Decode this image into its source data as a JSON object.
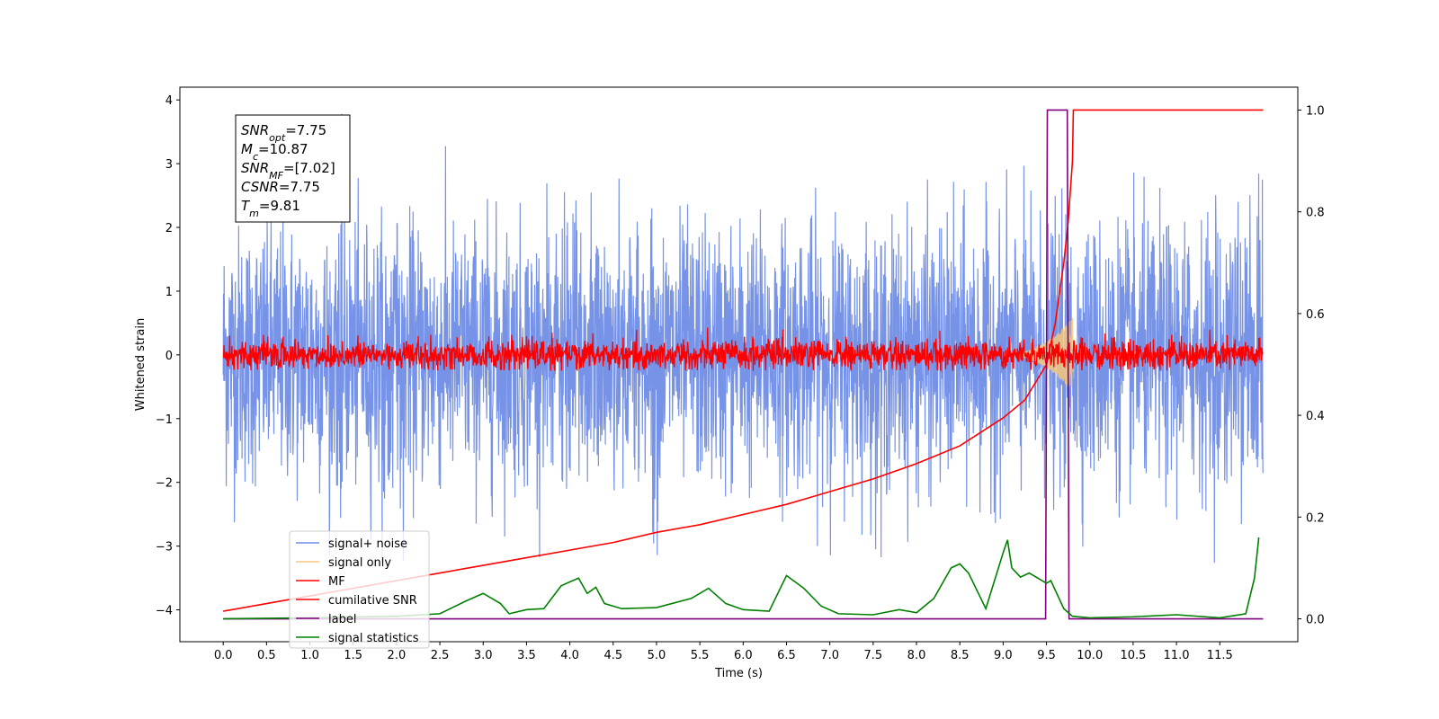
{
  "chart_data": {
    "type": "line",
    "xlabel": "Time (s)",
    "ylabel": "Whitened strain",
    "xlim": [
      -0.5,
      12.4
    ],
    "ylim": [
      -4.5,
      4.2
    ],
    "y2lim": [
      -0.045,
      1.045
    ],
    "x_ticks": [
      0.0,
      0.5,
      1.0,
      1.5,
      2.0,
      2.5,
      3.0,
      3.5,
      4.0,
      4.5,
      5.0,
      5.5,
      6.0,
      6.5,
      7.0,
      7.5,
      8.0,
      8.5,
      9.0,
      9.5,
      10.0,
      10.5,
      11.0,
      11.5
    ],
    "x_tick_labels": [
      "0.0",
      "0.5",
      "1.0",
      "1.5",
      "2.0",
      "2.5",
      "3.0",
      "3.5",
      "4.0",
      "4.5",
      "5.0",
      "5.5",
      "6.0",
      "6.5",
      "7.0",
      "7.5",
      "8.0",
      "8.5",
      "9.0",
      "9.5",
      "10.0",
      "10.5",
      "11.0",
      "11.5"
    ],
    "y_ticks": [
      4,
      3,
      2,
      1,
      0,
      -1,
      -2,
      -3,
      -4
    ],
    "y_tick_labels": [
      "4",
      "3",
      "2",
      "1",
      "0",
      "−1",
      "−2",
      "−3",
      "−4"
    ],
    "y2_ticks": [
      1.0,
      0.8,
      0.6,
      0.4,
      0.2,
      0.0
    ],
    "y2_tick_labels": [
      "1.0",
      "0.8",
      "0.6",
      "0.4",
      "0.2",
      "0.0"
    ],
    "grid": false,
    "legend_placement": "lower-left",
    "colors": {
      "signal_noise": "#6f8de6",
      "signal_only": "#f5c77e",
      "mf": "#ff0000",
      "cumulative_snr": "#ff0000",
      "label": "#800080",
      "signal_statistics": "#008000"
    },
    "series": [
      {
        "name": "signal+ noise",
        "axis": "left",
        "style": "dense-noise",
        "x_range": [
          0.0,
          12.0
        ],
        "amplitude_sigma": 1.0,
        "y_extent": [
          -3.3,
          3.8
        ]
      },
      {
        "name": "signal only",
        "axis": "left",
        "style": "chirp",
        "x_range": [
          9.0,
          9.81
        ],
        "peak_amplitude": 0.6
      },
      {
        "name": "MF",
        "axis": "left",
        "style": "dense-noise",
        "x_range": [
          0.0,
          12.0
        ],
        "amplitude_sigma": 0.12,
        "y_extent": [
          -0.25,
          0.55
        ]
      },
      {
        "name": "cumilative SNR",
        "axis": "right",
        "x": [
          0.0,
          0.5,
          1.0,
          1.5,
          2.0,
          2.5,
          3.0,
          3.5,
          4.0,
          4.5,
          5.0,
          5.5,
          6.0,
          6.5,
          7.0,
          7.5,
          8.0,
          8.5,
          9.0,
          9.25,
          9.5,
          9.6,
          9.7,
          9.75,
          9.8,
          9.81,
          12.0
        ],
        "values": [
          0.015,
          0.03,
          0.045,
          0.06,
          0.075,
          0.09,
          0.105,
          0.12,
          0.135,
          0.15,
          0.17,
          0.185,
          0.205,
          0.225,
          0.25,
          0.275,
          0.305,
          0.34,
          0.395,
          0.43,
          0.5,
          0.58,
          0.7,
          0.78,
          0.9,
          1.0,
          1.0
        ]
      },
      {
        "name": "label",
        "axis": "right",
        "x": [
          0.0,
          9.49,
          9.51,
          9.74,
          9.76,
          12.0
        ],
        "values": [
          0.0,
          0.0,
          1.0,
          1.0,
          0.0,
          0.0
        ]
      },
      {
        "name": "signal statistics",
        "axis": "right",
        "x": [
          0.0,
          1.0,
          2.0,
          2.5,
          2.8,
          3.0,
          3.2,
          3.3,
          3.5,
          3.7,
          3.9,
          4.1,
          4.2,
          4.3,
          4.4,
          4.6,
          5.0,
          5.4,
          5.6,
          5.8,
          6.0,
          6.3,
          6.5,
          6.7,
          6.9,
          7.1,
          7.5,
          7.8,
          8.0,
          8.2,
          8.4,
          8.5,
          8.6,
          8.8,
          9.0,
          9.05,
          9.1,
          9.2,
          9.3,
          9.5,
          9.55,
          9.7,
          9.8,
          10.0,
          10.5,
          11.0,
          11.5,
          11.8,
          11.9,
          11.95
        ],
        "values": [
          0.0,
          0.002,
          0.005,
          0.01,
          0.035,
          0.05,
          0.03,
          0.01,
          0.018,
          0.02,
          0.065,
          0.08,
          0.05,
          0.062,
          0.03,
          0.02,
          0.022,
          0.04,
          0.06,
          0.03,
          0.018,
          0.015,
          0.085,
          0.06,
          0.025,
          0.01,
          0.008,
          0.018,
          0.012,
          0.04,
          0.1,
          0.108,
          0.09,
          0.02,
          0.13,
          0.155,
          0.1,
          0.082,
          0.09,
          0.07,
          0.075,
          0.02,
          0.005,
          0.002,
          0.004,
          0.008,
          0.002,
          0.01,
          0.08,
          0.16
        ]
      }
    ],
    "legend": [
      "signal+ noise",
      "signal only",
      "MF",
      "cumilative SNR",
      "label",
      "signal statistics"
    ],
    "annotation_lines": [
      {
        "sym": "SNR",
        "sub": "opt",
        "rest": "=7.75"
      },
      {
        "sym": "M",
        "sub": "c",
        "rest": "=10.87"
      },
      {
        "sym": "SNR",
        "sub": "MF",
        "rest": "=[7.02]"
      },
      {
        "sym": "CSNR",
        "sub": "",
        "rest": "=7.75"
      },
      {
        "sym": "T",
        "sub": "m",
        "rest": "=9.81"
      }
    ]
  }
}
